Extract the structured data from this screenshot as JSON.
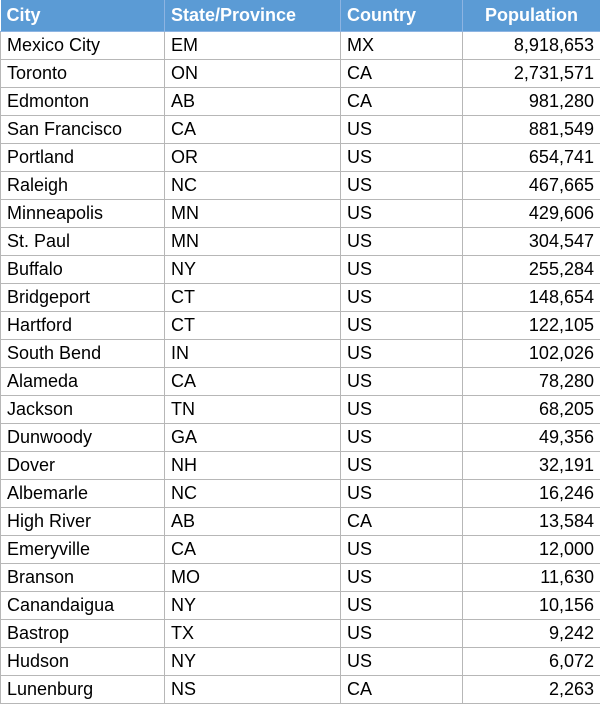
{
  "table": {
    "headers": [
      "City",
      "State/Province",
      "Country",
      "Population"
    ],
    "rows": [
      [
        "Mexico City",
        "EM",
        "MX",
        "8,918,653"
      ],
      [
        "Toronto",
        "ON",
        "CA",
        "2,731,571"
      ],
      [
        "Edmonton",
        "AB",
        "CA",
        "981,280"
      ],
      [
        "San Francisco",
        "CA",
        "US",
        "881,549"
      ],
      [
        "Portland",
        "OR",
        "US",
        "654,741"
      ],
      [
        "Raleigh",
        "NC",
        "US",
        "467,665"
      ],
      [
        "Minneapolis",
        "MN",
        "US",
        "429,606"
      ],
      [
        "St. Paul",
        "MN",
        "US",
        "304,547"
      ],
      [
        "Buffalo",
        "NY",
        "US",
        "255,284"
      ],
      [
        "Bridgeport",
        "CT",
        "US",
        "148,654"
      ],
      [
        "Hartford",
        "CT",
        "US",
        "122,105"
      ],
      [
        "South Bend",
        "IN",
        "US",
        "102,026"
      ],
      [
        "Alameda",
        "CA",
        "US",
        "78,280"
      ],
      [
        "Jackson",
        "TN",
        "US",
        "68,205"
      ],
      [
        "Dunwoody",
        "GA",
        "US",
        "49,356"
      ],
      [
        "Dover",
        "NH",
        "US",
        "32,191"
      ],
      [
        "Albemarle",
        "NC",
        "US",
        "16,246"
      ],
      [
        "High River",
        "AB",
        "CA",
        "13,584"
      ],
      [
        "Emeryville",
        "CA",
        "US",
        "12,000"
      ],
      [
        "Branson",
        "MO",
        "US",
        "11,630"
      ],
      [
        "Canandaigua",
        "NY",
        "US",
        "10,156"
      ],
      [
        "Bastrop",
        "TX",
        "US",
        "9,242"
      ],
      [
        "Hudson",
        "NY",
        "US",
        "6,072"
      ],
      [
        "Lunenburg",
        "NS",
        "CA",
        "2,263"
      ]
    ]
  },
  "colors": {
    "header_background": "#5b9bd5",
    "header_text": "#ffffff",
    "grid_line": "#b7b7b7"
  }
}
